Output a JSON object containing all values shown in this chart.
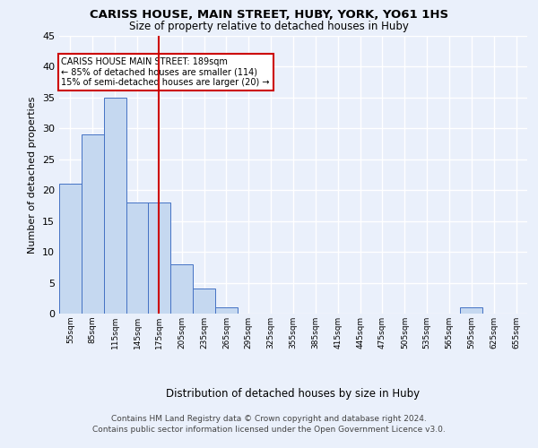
{
  "title1": "CARISS HOUSE, MAIN STREET, HUBY, YORK, YO61 1HS",
  "title2": "Size of property relative to detached houses in Huby",
  "xlabel": "Distribution of detached houses by size in Huby",
  "ylabel": "Number of detached properties",
  "bar_values": [
    21,
    29,
    35,
    18,
    18,
    8,
    4,
    1,
    0,
    0,
    0,
    0,
    0,
    0,
    0,
    0,
    0,
    0,
    1,
    0
  ],
  "bin_labels": [
    "55sqm",
    "85sqm",
    "115sqm",
    "145sqm",
    "175sqm",
    "205sqm",
    "235sqm",
    "265sqm",
    "295sqm",
    "325sqm",
    "355sqm",
    "385sqm",
    "415sqm",
    "445sqm",
    "475sqm",
    "505sqm",
    "535sqm",
    "565sqm",
    "595sqm",
    "625sqm",
    "655sqm"
  ],
  "bin_edges": [
    55,
    85,
    115,
    145,
    175,
    205,
    235,
    265,
    295,
    325,
    355,
    385,
    415,
    445,
    475,
    505,
    535,
    565,
    595,
    625,
    655
  ],
  "bar_color": "#c5d8f0",
  "bar_edge_color": "#4472c4",
  "vline_x": 189,
  "vline_color": "#cc0000",
  "ylim": [
    0,
    45
  ],
  "yticks": [
    0,
    5,
    10,
    15,
    20,
    25,
    30,
    35,
    40,
    45
  ],
  "annotation_text": "CARISS HOUSE MAIN STREET: 189sqm\n← 85% of detached houses are smaller (114)\n15% of semi-detached houses are larger (20) →",
  "annotation_box_color": "#ffffff",
  "annotation_box_edge": "#cc0000",
  "footer1": "Contains HM Land Registry data © Crown copyright and database right 2024.",
  "footer2": "Contains public sector information licensed under the Open Government Licence v3.0.",
  "bg_color": "#eaf0fb",
  "plot_bg_color": "#eaf0fb",
  "grid_color": "#ffffff"
}
